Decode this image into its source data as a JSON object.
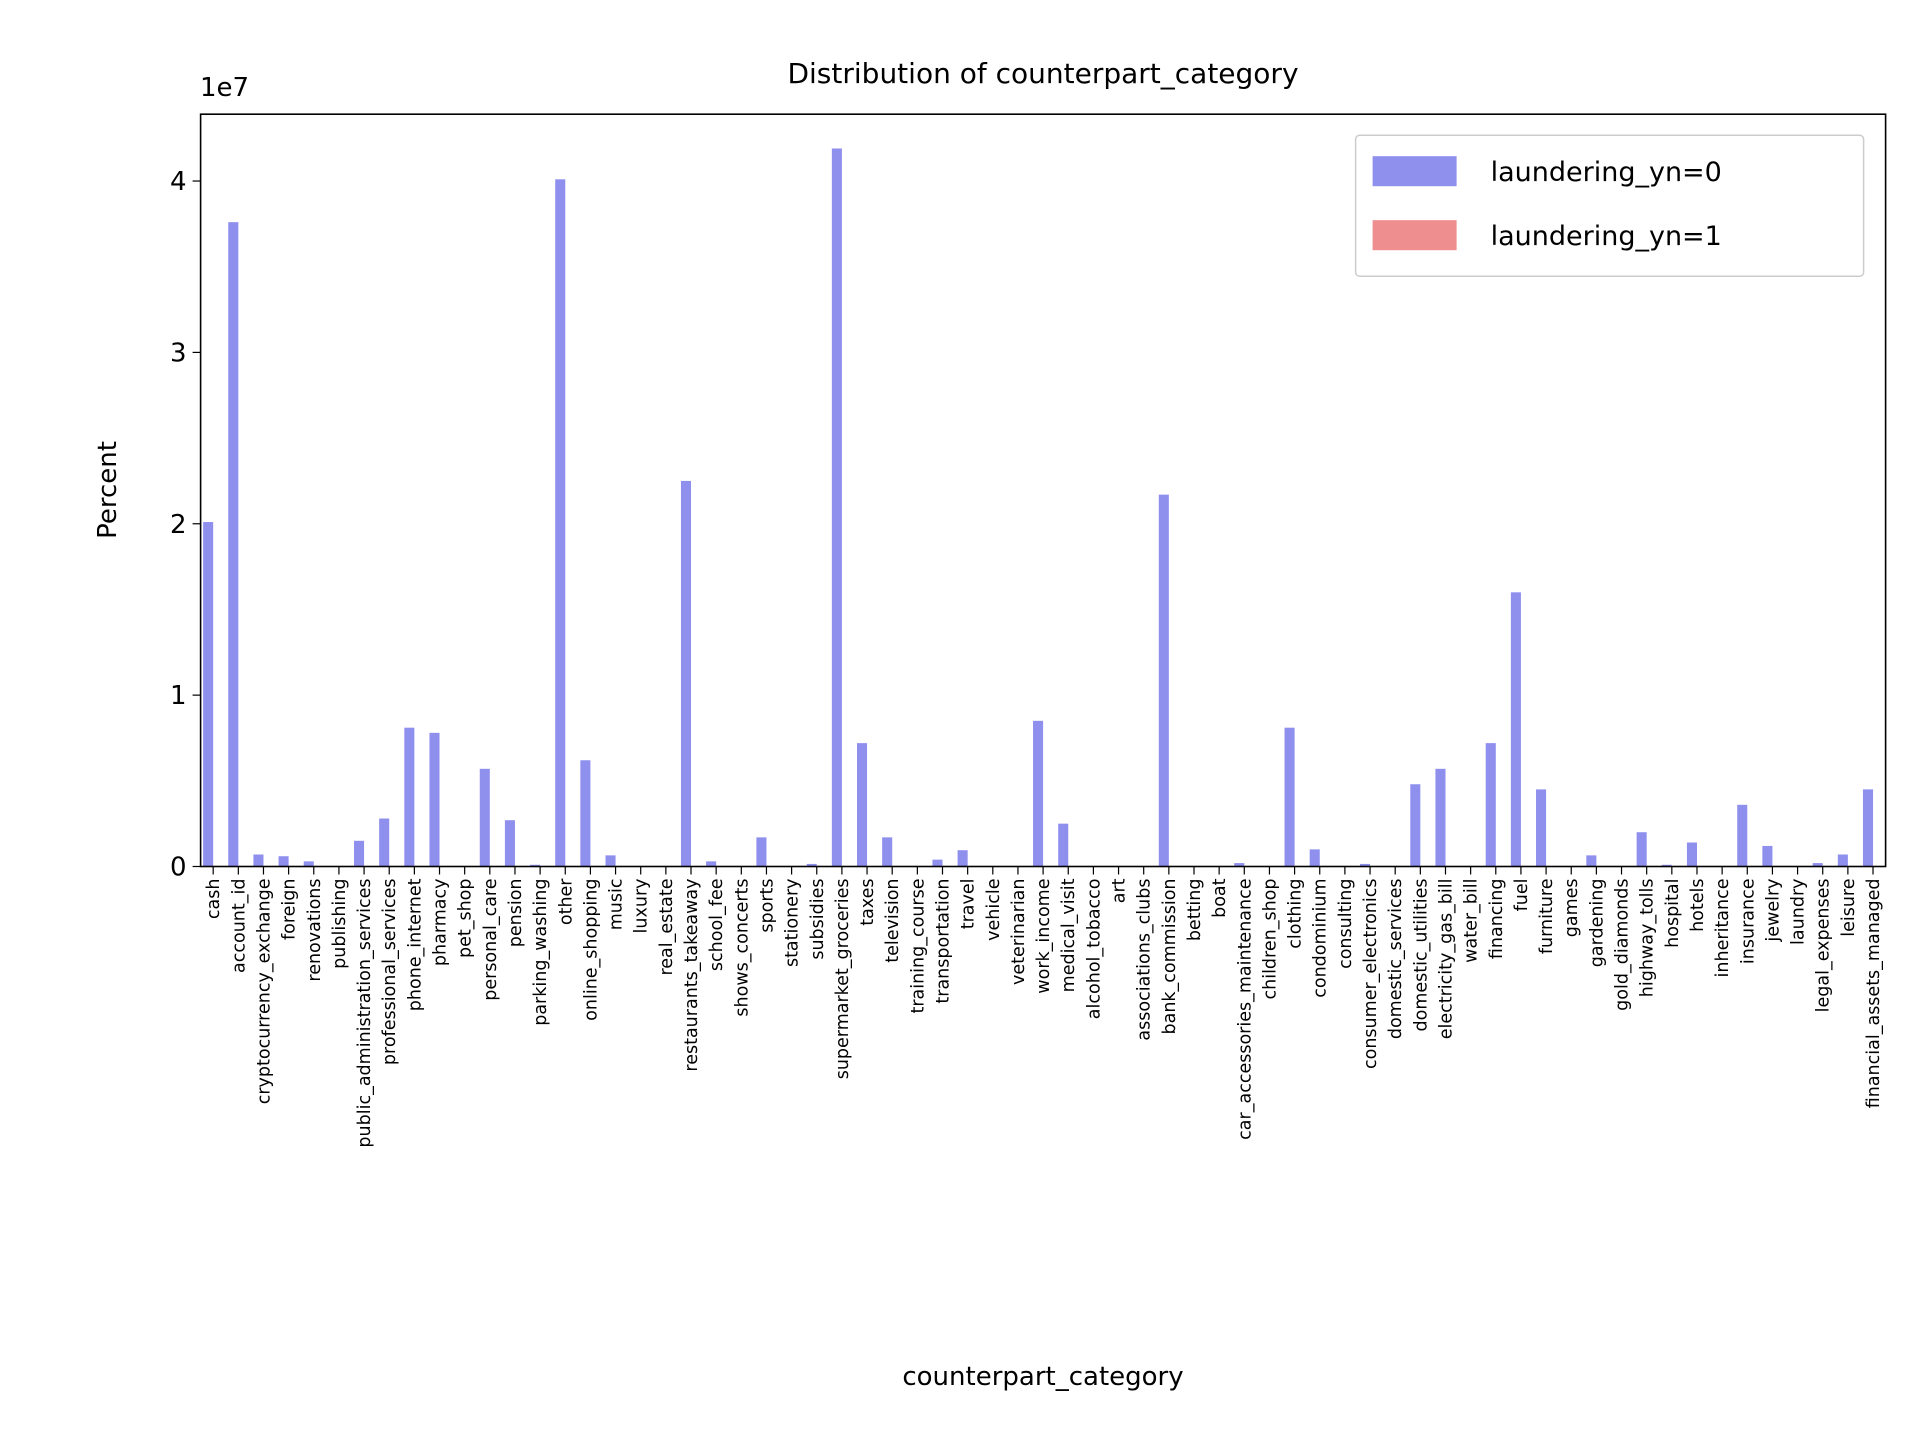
{
  "chart_data": {
    "type": "bar",
    "title": "Distribution of counterpart_category",
    "x_label": "counterpart_category",
    "y_label": "Percent",
    "y_offset_label": "1e7",
    "categories": [
      "cash",
      "account_id",
      "cryptocurrency_exchange",
      "foreign",
      "renovations",
      "publishing",
      "public_administration_services",
      "professional_services",
      "phone_internet",
      "pharmacy",
      "pet_shop",
      "personal_care",
      "pension",
      "parking_washing",
      "other",
      "online_shopping",
      "music",
      "luxury",
      "real_estate",
      "restaurants_takeaway",
      "school_fee",
      "shows_concerts",
      "sports",
      "stationery",
      "subsidies",
      "supermarket_groceries",
      "taxes",
      "television",
      "training_course",
      "transportation",
      "travel",
      "vehicle",
      "veterinarian",
      "work_income",
      "medical_visit",
      "alcohol_tobacco",
      "art",
      "associations_clubs",
      "bank_commission",
      "betting",
      "boat",
      "car_accessories_maintenance",
      "children_shop",
      "clothing",
      "condominium",
      "consulting",
      "consumer_electronics",
      "domestic_services",
      "domestic_utilities",
      "electricity_gas_bill",
      "water_bill",
      "financing",
      "fuel",
      "furniture",
      "games",
      "gardening",
      "gold_diamonds",
      "highway_tolls",
      "hospital",
      "hotels",
      "inheritance",
      "insurance",
      "jewelry",
      "laundry",
      "legal_expenses",
      "leisure",
      "financial_assets_managed"
    ],
    "series": [
      {
        "name": "laundering_yn=0",
        "color": "#8f8fee",
        "values": [
          20100000,
          37600000,
          700000,
          600000,
          300000,
          0,
          1500000,
          2800000,
          8100000,
          7800000,
          0,
          5700000,
          2700000,
          100000,
          40100000,
          6200000,
          650000,
          0,
          0,
          22500000,
          300000,
          0,
          1700000,
          0,
          150000,
          41900000,
          7200000,
          1700000,
          0,
          400000,
          950000,
          0,
          0,
          8500000,
          2500000,
          0,
          0,
          0,
          21700000,
          0,
          0,
          200000,
          0,
          8100000,
          1000000,
          0,
          150000,
          0,
          4800000,
          5700000,
          0,
          7200000,
          16000000,
          4500000,
          0,
          650000,
          0,
          2000000,
          100000,
          1400000,
          0,
          3600000,
          1200000,
          0,
          200000,
          700000,
          4500000
        ]
      },
      {
        "name": "laundering_yn=1",
        "color": "#ee8e8e",
        "values": [
          0,
          0,
          0,
          0,
          0,
          0,
          0,
          0,
          0,
          0,
          0,
          0,
          0,
          0,
          0,
          0,
          0,
          0,
          0,
          0,
          0,
          0,
          0,
          0,
          0,
          0,
          0,
          0,
          0,
          0,
          0,
          0,
          0,
          0,
          0,
          0,
          0,
          0,
          0,
          0,
          0,
          0,
          0,
          0,
          0,
          0,
          0,
          0,
          0,
          0,
          0,
          0,
          0,
          0,
          0,
          0,
          0,
          0,
          0,
          0,
          0,
          0,
          0,
          0,
          0,
          0,
          0
        ]
      }
    ],
    "ylim": [
      0,
      43900000
    ],
    "yticks": [
      {
        "value": 0,
        "label": "0"
      },
      {
        "value": 10000000,
        "label": "1"
      },
      {
        "value": 20000000,
        "label": "2"
      },
      {
        "value": 30000000,
        "label": "3"
      },
      {
        "value": 40000000,
        "label": "4"
      }
    ],
    "legend": "upper right"
  }
}
